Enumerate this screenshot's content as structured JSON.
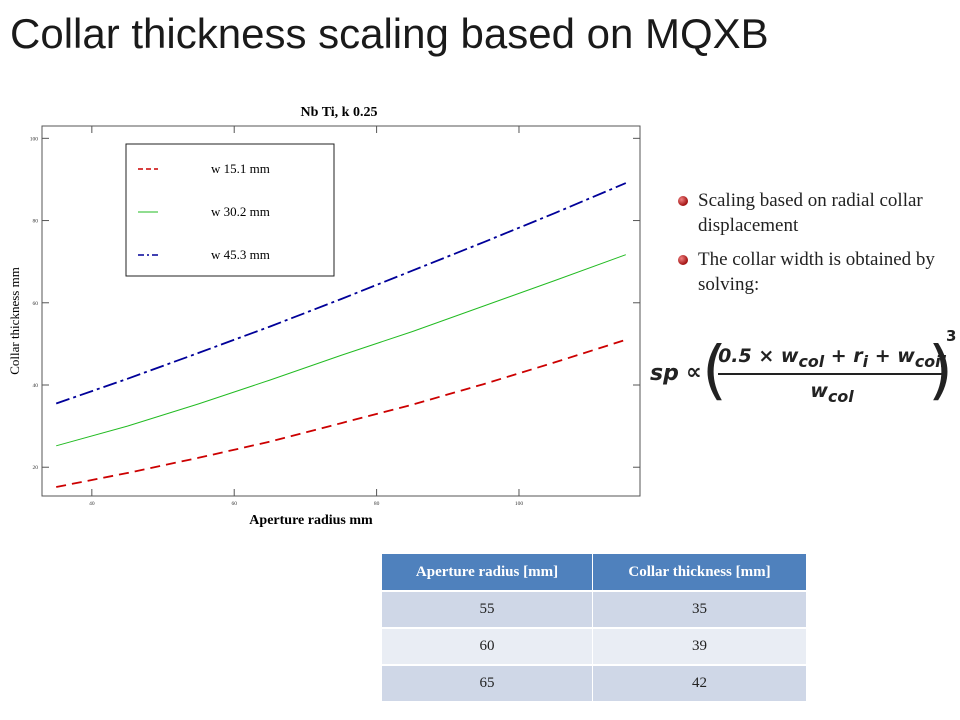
{
  "slide": {
    "title": "Collar thickness scaling based on MQXB",
    "bullets": [
      "Scaling based on radial collar displacement",
      "The collar width is obtained by solving:"
    ],
    "formula": {
      "lhs": "sp",
      "relation": "∝",
      "numerator": "0.5 × w",
      "numerator_sub1": "col",
      "numerator_plus_ri": " + r",
      "numerator_sub2": "i",
      "numerator_plus_wcoil": " + w",
      "numerator_sub3": "coil",
      "denominator": "w",
      "denominator_sub": "col",
      "exponent": "3"
    }
  },
  "table": {
    "headers": [
      "Aperture  radius [mm]",
      "Collar thickness [mm]"
    ],
    "rows": [
      [
        "55",
        "35"
      ],
      [
        "60",
        "39"
      ],
      [
        "65",
        "42"
      ]
    ]
  },
  "chart_data": {
    "type": "line",
    "title": "Nb Ti, k 0.25",
    "title_superscript": "",
    "xlabel": "Aperture radius mm",
    "ylabel": "Collar thickness mm",
    "xlim": [
      33,
      117
    ],
    "ylim": [
      13,
      103
    ],
    "xticks": [
      40,
      60,
      80,
      100
    ],
    "yticks": [
      20,
      40,
      60,
      80,
      100
    ],
    "legend_position": "top-left",
    "grid": false,
    "series": [
      {
        "name": "w 15.1 mm",
        "legend_symbol": "---",
        "color": "#cc0000",
        "dash": "10,6",
        "x": [
          35,
          45,
          55,
          65,
          75,
          85,
          95,
          105,
          115
        ],
        "y": [
          15.2,
          18.6,
          22.3,
          26.2,
          30.7,
          35.2,
          40.2,
          45.5,
          51.0
        ]
      },
      {
        "name": "w 30.2 mm",
        "legend_symbol": "",
        "color": "#22bb22",
        "dash": "",
        "x": [
          35,
          45,
          55,
          65,
          75,
          85,
          95,
          105,
          115
        ],
        "y": [
          25.2,
          30.0,
          35.4,
          41.2,
          47.2,
          53.0,
          59.2,
          65.4,
          71.7
        ]
      },
      {
        "name": "w 45.3 mm",
        "legend_symbol": "",
        "color": "#000099",
        "dash": "14,4,3,4",
        "x": [
          35,
          45,
          55,
          65,
          75,
          85,
          95,
          105,
          115
        ],
        "y": [
          35.5,
          41.5,
          47.8,
          54.2,
          60.9,
          67.8,
          74.7,
          81.8,
          89.1
        ]
      }
    ]
  }
}
